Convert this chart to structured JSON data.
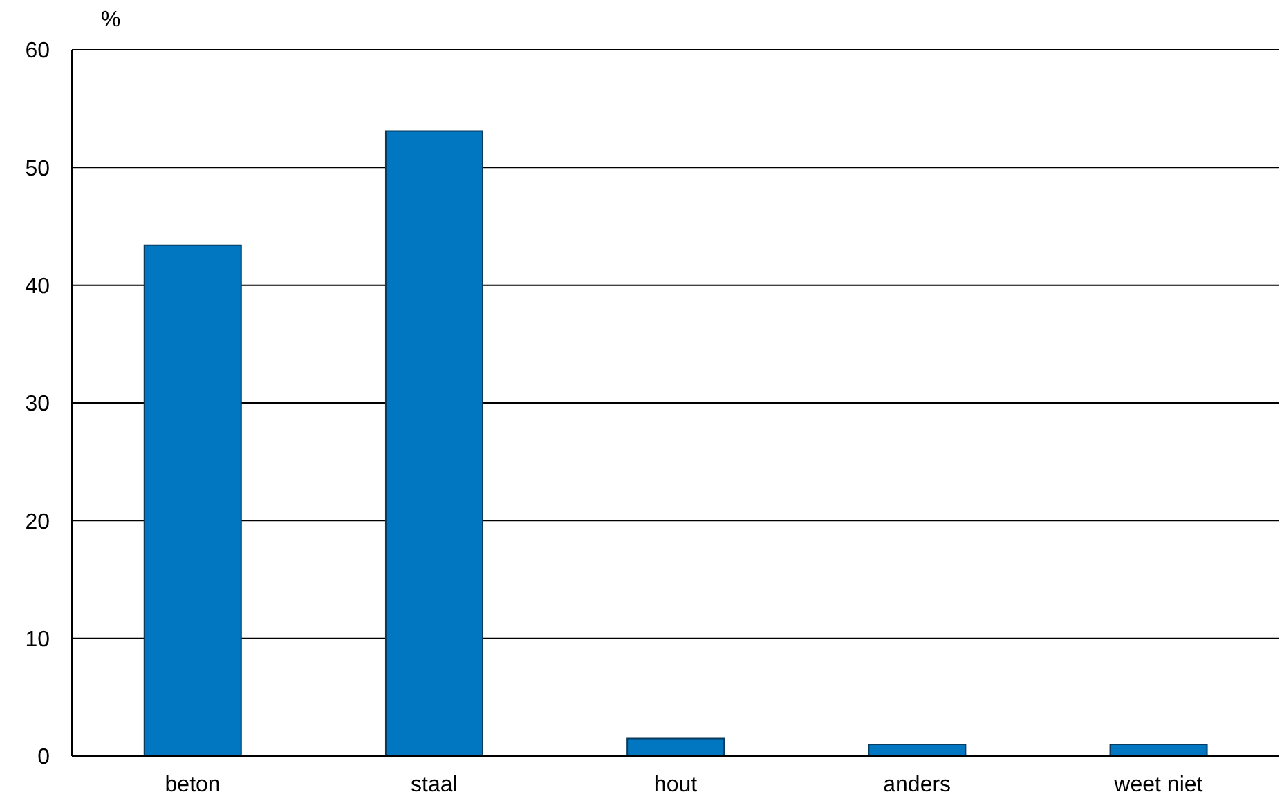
{
  "chart_data": {
    "type": "bar",
    "ylabel": "%",
    "categories": [
      "beton",
      "staal",
      "hout",
      "anders",
      "weet niet"
    ],
    "values": [
      43.4,
      53.1,
      1.5,
      1.0,
      1.0
    ],
    "color": "#0077c0",
    "ylim": [
      0,
      60
    ],
    "yticks": [
      0,
      10,
      20,
      30,
      40,
      50,
      60
    ],
    "grid": "y"
  }
}
